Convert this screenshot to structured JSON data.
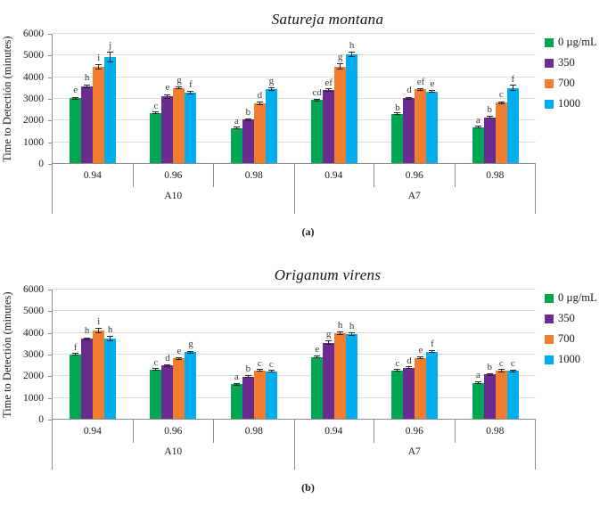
{
  "chart_data": [
    {
      "type": "bar",
      "title": "Satureja montana",
      "caption": "(a)",
      "ylabel": "Time to Detectión (minutes)",
      "ylim": [
        0,
        6000
      ],
      "yticks": [
        0,
        1000,
        2000,
        3000,
        4000,
        5000,
        6000
      ],
      "grid": true,
      "legend_position": "right",
      "series_names": [
        "0 µg/mL",
        "350",
        "700",
        "1000"
      ],
      "series_colors": [
        "#00A651",
        "#6B2C91",
        "#F07E2E",
        "#00AEEF"
      ],
      "regions": [
        "A10",
        "A7"
      ],
      "groups": [
        {
          "x": "0.94",
          "region": "A10",
          "bars": [
            {
              "value": 3000,
              "err": 70,
              "letter": "e"
            },
            {
              "value": 3550,
              "err": 90,
              "letter": "h"
            },
            {
              "value": 4450,
              "err": 130,
              "letter": "i"
            },
            {
              "value": 4900,
              "err": 250,
              "letter": "j"
            }
          ]
        },
        {
          "x": "0.96",
          "region": "A10",
          "bars": [
            {
              "value": 2300,
              "err": 40,
              "letter": "c"
            },
            {
              "value": 3080,
              "err": 110,
              "letter": "e"
            },
            {
              "value": 3470,
              "err": 60,
              "letter": "g"
            },
            {
              "value": 3250,
              "err": 90,
              "letter": "f"
            }
          ]
        },
        {
          "x": "0.98",
          "region": "A10",
          "bars": [
            {
              "value": 1600,
              "err": 50,
              "letter": "a"
            },
            {
              "value": 2000,
              "err": 70,
              "letter": "b"
            },
            {
              "value": 2750,
              "err": 80,
              "letter": "d"
            },
            {
              "value": 3400,
              "err": 90,
              "letter": "g"
            }
          ]
        },
        {
          "x": "0.94",
          "region": "A7",
          "bars": [
            {
              "value": 2900,
              "err": 60,
              "letter": "cd"
            },
            {
              "value": 3350,
              "err": 80,
              "letter": "ef"
            },
            {
              "value": 4450,
              "err": 150,
              "letter": "g"
            },
            {
              "value": 5000,
              "err": 120,
              "letter": "h"
            }
          ]
        },
        {
          "x": "0.96",
          "region": "A7",
          "bars": [
            {
              "value": 2250,
              "err": 30,
              "letter": "b"
            },
            {
              "value": 3000,
              "err": 70,
              "letter": "d"
            },
            {
              "value": 3400,
              "err": 60,
              "letter": "ef"
            },
            {
              "value": 3300,
              "err": 70,
              "letter": "e"
            }
          ]
        },
        {
          "x": "0.98",
          "region": "A7",
          "bars": [
            {
              "value": 1650,
              "err": 40,
              "letter": "a"
            },
            {
              "value": 2100,
              "err": 60,
              "letter": "b"
            },
            {
              "value": 2800,
              "err": 70,
              "letter": "c"
            },
            {
              "value": 3450,
              "err": 140,
              "letter": "f"
            }
          ]
        }
      ]
    },
    {
      "type": "bar",
      "title": "Origanum virens",
      "caption": "(b)",
      "ylabel": "Time to Detectión (minutes)",
      "ylim": [
        0,
        6000
      ],
      "yticks": [
        0,
        1000,
        2000,
        3000,
        4000,
        5000,
        6000
      ],
      "grid": true,
      "legend_position": "right",
      "series_names": [
        "0 µg/mL",
        "350",
        "700",
        "1000"
      ],
      "series_colors": [
        "#00A651",
        "#6B2C91",
        "#F07E2E",
        "#00AEEF"
      ],
      "regions": [
        "A10",
        "A7"
      ],
      "groups": [
        {
          "x": "0.94",
          "region": "A10",
          "bars": [
            {
              "value": 2950,
              "err": 40,
              "letter": "f"
            },
            {
              "value": 3700,
              "err": 70,
              "letter": "h"
            },
            {
              "value": 4080,
              "err": 120,
              "letter": "i"
            },
            {
              "value": 3700,
              "err": 120,
              "letter": "h"
            }
          ]
        },
        {
          "x": "0.96",
          "region": "A10",
          "bars": [
            {
              "value": 2250,
              "err": 40,
              "letter": "c"
            },
            {
              "value": 2450,
              "err": 50,
              "letter": "d"
            },
            {
              "value": 2780,
              "err": 70,
              "letter": "e"
            },
            {
              "value": 3080,
              "err": 70,
              "letter": "g"
            }
          ]
        },
        {
          "x": "0.98",
          "region": "A10",
          "bars": [
            {
              "value": 1600,
              "err": 60,
              "letter": "a"
            },
            {
              "value": 1950,
              "err": 60,
              "letter": "b"
            },
            {
              "value": 2200,
              "err": 40,
              "letter": "c"
            },
            {
              "value": 2180,
              "err": 40,
              "letter": "c"
            }
          ]
        },
        {
          "x": "0.94",
          "region": "A7",
          "bars": [
            {
              "value": 2850,
              "err": 50,
              "letter": "e"
            },
            {
              "value": 3500,
              "err": 100,
              "letter": "g"
            },
            {
              "value": 3950,
              "err": 80,
              "letter": "h"
            },
            {
              "value": 3900,
              "err": 80,
              "letter": "h"
            }
          ]
        },
        {
          "x": "0.96",
          "region": "A7",
          "bars": [
            {
              "value": 2200,
              "err": 40,
              "letter": "c"
            },
            {
              "value": 2350,
              "err": 40,
              "letter": "d"
            },
            {
              "value": 2800,
              "err": 60,
              "letter": "e"
            },
            {
              "value": 3100,
              "err": 60,
              "letter": "f"
            }
          ]
        },
        {
          "x": "0.98",
          "region": "A7",
          "bars": [
            {
              "value": 1650,
              "err": 60,
              "letter": "a"
            },
            {
              "value": 2050,
              "err": 60,
              "letter": "b"
            },
            {
              "value": 2200,
              "err": 80,
              "letter": "c"
            },
            {
              "value": 2200,
              "err": 70,
              "letter": "c"
            }
          ]
        }
      ]
    }
  ]
}
